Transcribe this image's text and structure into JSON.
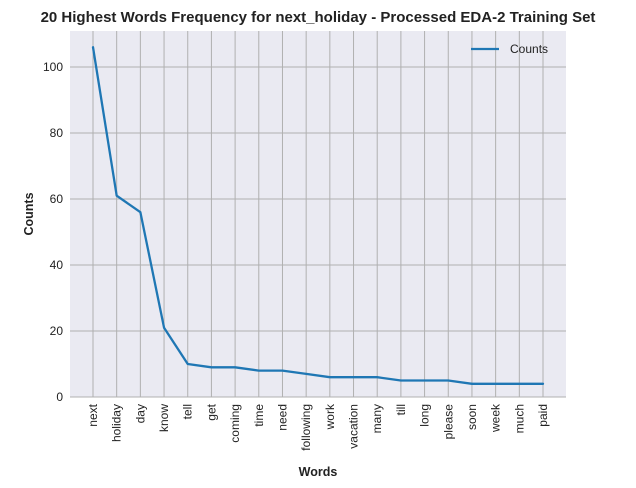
{
  "chart_data": {
    "type": "line",
    "title": "20 Highest Words Frequency for next_holiday - Processed EDA-2 Training Set",
    "xlabel": "Words",
    "ylabel": "Counts",
    "categories": [
      "next",
      "holiday",
      "day",
      "know",
      "tell",
      "get",
      "coming",
      "time",
      "need",
      "following",
      "work",
      "vacation",
      "many",
      "till",
      "long",
      "please",
      "soon",
      "week",
      "much",
      "paid"
    ],
    "series": [
      {
        "name": "Counts",
        "values": [
          106,
          61,
          56,
          21,
          10,
          9,
          9,
          8,
          8,
          7,
          6,
          6,
          6,
          5,
          5,
          5,
          4,
          4,
          4,
          4
        ],
        "color": "#1f77b4"
      }
    ],
    "ylim": [
      0,
      111
    ],
    "yticks": [
      0,
      20,
      40,
      60,
      80,
      100
    ],
    "grid": true,
    "legend_position": "top-right",
    "background": "#eaeaf2",
    "grid_color": "#b0b0b0"
  }
}
